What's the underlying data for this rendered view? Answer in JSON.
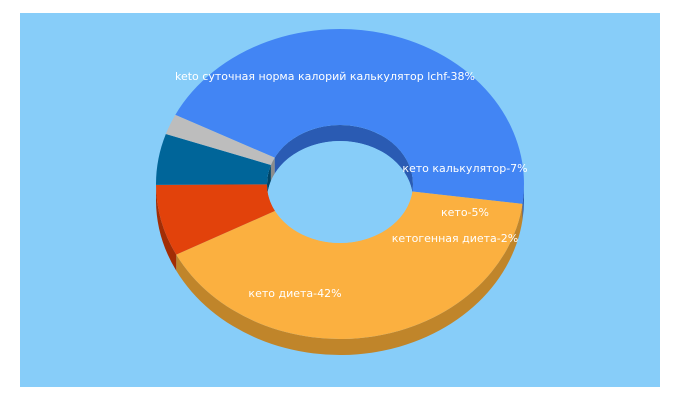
{
  "chart_data": {
    "type": "pie",
    "variant": "3d-donut",
    "categories": [
      "кето диета",
      "keto суточная норма калорий калькулятор lchf",
      "кето калькулятор",
      "кето",
      "кетогенная диета"
    ],
    "values": [
      42,
      38,
      7,
      5,
      2
    ],
    "labels": [
      "кето диета-42%",
      "keto суточная норма калорий калькулятор lchf-38%",
      "кето калькулятор-7%",
      "кето-5%",
      "кетогенная диета-2%"
    ],
    "colors": [
      "#4285f4",
      "#fbb040",
      "#e2420b",
      "#006599",
      "#bdbdbd"
    ],
    "side_colors": [
      "#2a5bb3",
      "#c0852a",
      "#a22d05",
      "#004466",
      "#8c8c8c"
    ],
    "hole_color": "#87cdf9",
    "background": "#87cdf9",
    "title": "",
    "legend": "none"
  }
}
